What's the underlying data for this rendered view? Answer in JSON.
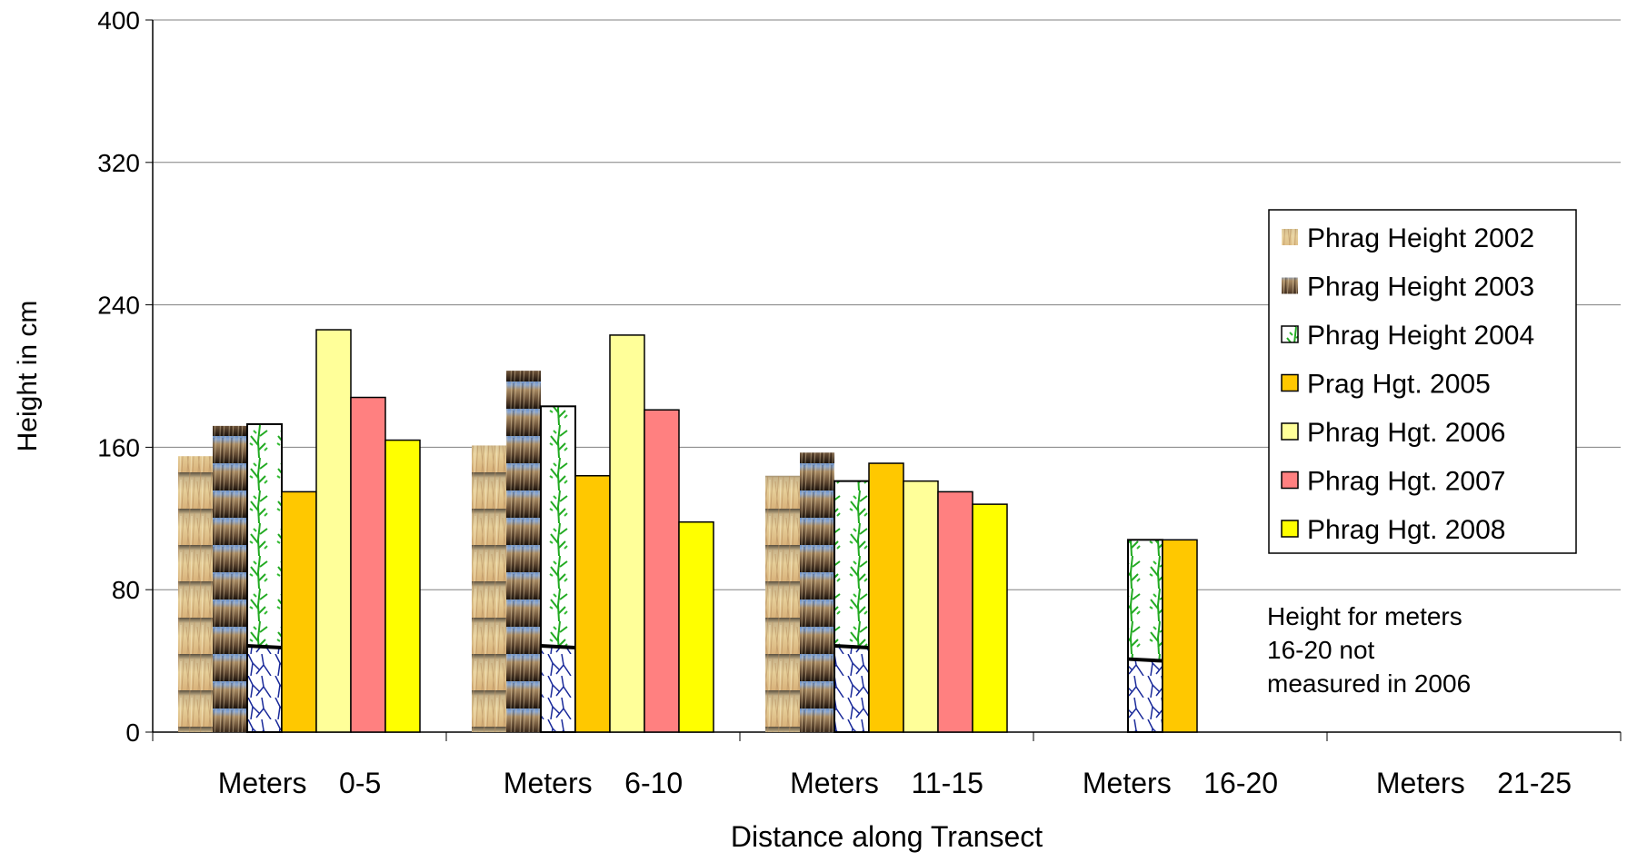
{
  "chart_data": {
    "type": "bar",
    "title": "",
    "xlabel": "Distance along Transect",
    "ylabel": "Height in cm",
    "ylim": [
      0,
      400
    ],
    "yticks": [
      0,
      80,
      160,
      240,
      320,
      400
    ],
    "grid": true,
    "legend_position": "right",
    "categories": [
      "Meters    0-5",
      "Meters    6-10",
      "Meters    11-15",
      "Meters    16-20",
      "Meters    21-25"
    ],
    "series": [
      {
        "name": "Phrag Height 2002",
        "values": [
          155,
          161,
          144,
          null,
          null
        ],
        "style": "photo-grass-light"
      },
      {
        "name": "Phrag Height 2003",
        "values": [
          172,
          203,
          157,
          null,
          null
        ],
        "style": "photo-grass-dark"
      },
      {
        "name": "Phrag Height 2004",
        "values": [
          173,
          183,
          141,
          108,
          null
        ],
        "style": "plant-roots"
      },
      {
        "name": "Prag Hgt. 2005",
        "values": [
          135,
          144,
          151,
          108,
          null
        ],
        "color": "#FFC800"
      },
      {
        "name": "Phrag Hgt. 2006",
        "values": [
          226,
          223,
          141,
          null,
          null
        ],
        "color": "#FFFF99"
      },
      {
        "name": "Phrag Hgt. 2007",
        "values": [
          188,
          181,
          135,
          null,
          null
        ],
        "color": "#FF8080"
      },
      {
        "name": "Phrag Hgt. 2008",
        "values": [
          164,
          118,
          128,
          null,
          null
        ],
        "color": "#FFFF00"
      }
    ],
    "annotation": {
      "lines": [
        "Height for meters",
        "16-20 not",
        "measured in 2006"
      ]
    }
  }
}
